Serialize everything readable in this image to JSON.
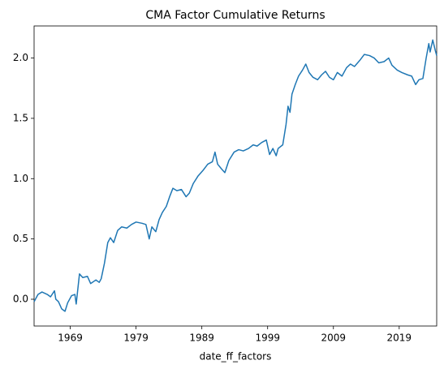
{
  "chart_data": {
    "type": "line",
    "title": "CMA Factor Cumulative Returns",
    "xlabel": "date_ff_factors",
    "color": "#1f77b4",
    "x": [
      1963.5,
      1964.1,
      1964.7,
      1965.5,
      1966.0,
      1966.6,
      1966.8,
      1967.2,
      1967.7,
      1968.2,
      1968.6,
      1969.2,
      1969.7,
      1969.9,
      1970.4,
      1970.9,
      1971.6,
      1972.1,
      1972.9,
      1973.4,
      1973.7,
      1974.2,
      1974.7,
      1975.1,
      1975.6,
      1976.2,
      1976.8,
      1977.6,
      1978.3,
      1979.0,
      1979.9,
      1980.5,
      1981.0,
      1981.4,
      1982.0,
      1982.5,
      1983.0,
      1983.6,
      1984.1,
      1984.6,
      1985.2,
      1985.9,
      1986.6,
      1987.1,
      1987.7,
      1988.4,
      1989.2,
      1989.9,
      1990.6,
      1991.0,
      1991.4,
      1992.0,
      1992.5,
      1993.1,
      1993.9,
      1994.6,
      1995.3,
      1996.1,
      1996.8,
      1997.4,
      1998.1,
      1998.8,
      1999.3,
      1999.8,
      2000.3,
      2000.6,
      2001.3,
      2001.8,
      2002.1,
      2002.4,
      2002.7,
      2003.2,
      2003.7,
      2004.3,
      2004.8,
      2005.3,
      2005.9,
      2006.6,
      2007.2,
      2007.8,
      2008.4,
      2009.0,
      2009.6,
      2010.3,
      2011.0,
      2011.6,
      2012.2,
      2013.0,
      2013.7,
      2014.5,
      2015.2,
      2015.9,
      2016.7,
      2017.4,
      2017.9,
      2018.7,
      2019.4,
      2020.3,
      2020.9,
      2021.5,
      2022.0,
      2022.6,
      2023.1,
      2023.5,
      2023.7,
      2024.1,
      2024.5,
      2024.7
    ],
    "values": [
      -0.02,
      0.04,
      0.06,
      0.04,
      0.02,
      0.07,
      0.0,
      -0.02,
      -0.08,
      -0.1,
      -0.03,
      0.03,
      0.04,
      -0.04,
      0.21,
      0.18,
      0.19,
      0.13,
      0.16,
      0.14,
      0.17,
      0.3,
      0.47,
      0.51,
      0.47,
      0.57,
      0.6,
      0.59,
      0.62,
      0.64,
      0.63,
      0.62,
      0.5,
      0.6,
      0.56,
      0.66,
      0.72,
      0.77,
      0.85,
      0.92,
      0.9,
      0.91,
      0.85,
      0.88,
      0.96,
      1.02,
      1.07,
      1.12,
      1.14,
      1.22,
      1.12,
      1.08,
      1.05,
      1.15,
      1.22,
      1.24,
      1.23,
      1.25,
      1.28,
      1.27,
      1.3,
      1.32,
      1.2,
      1.25,
      1.19,
      1.25,
      1.28,
      1.45,
      1.6,
      1.55,
      1.7,
      1.78,
      1.85,
      1.9,
      1.95,
      1.88,
      1.84,
      1.82,
      1.86,
      1.89,
      1.84,
      1.82,
      1.88,
      1.85,
      1.92,
      1.95,
      1.93,
      1.98,
      2.03,
      2.02,
      2.0,
      1.96,
      1.97,
      2.0,
      1.94,
      1.9,
      1.88,
      1.86,
      1.85,
      1.78,
      1.82,
      1.83,
      2.0,
      2.12,
      2.05,
      2.15,
      2.06,
      2.02
    ],
    "xlim": [
      1963.5,
      2024.7
    ],
    "xticks": [
      1969,
      1979,
      1989,
      1999,
      2009,
      2019
    ],
    "ylim": [
      -0.222,
      2.266
    ],
    "yticks": [
      {
        "value": 0,
        "label": "0.0"
      },
      0.5,
      {
        "value": 1,
        "label": "1.0"
      },
      1.5,
      {
        "value": 2,
        "label": "2.0"
      }
    ],
    "grid": false
  }
}
